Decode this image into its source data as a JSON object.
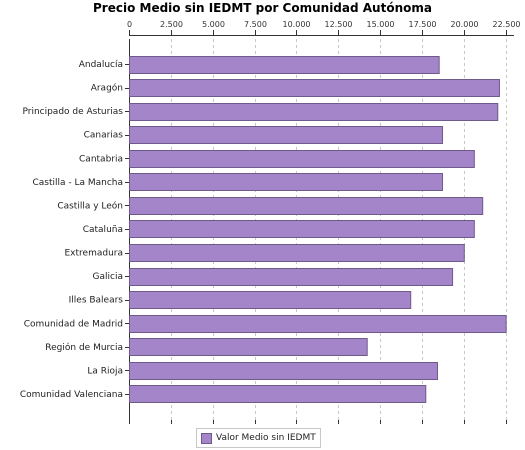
{
  "chart_data": {
    "type": "bar",
    "orientation": "horizontal",
    "title": "Precio Medio sin IEDMT por Comunidad Autónoma",
    "categories": [
      "Andalucía",
      "Aragón",
      "Principado de Asturias",
      "Canarias",
      "Cantabria",
      "Castilla - La Mancha",
      "Castilla y León",
      "Cataluña",
      "Extremadura",
      "Galicia",
      "Illes Balears",
      "Comunidad de Madrid",
      "Región de Murcia",
      "La Rioja",
      "Comunidad Valenciana"
    ],
    "series": [
      {
        "name": "Valor Medio sin IEDMT",
        "color": "#a585c9",
        "values": [
          18500,
          22100,
          22000,
          18700,
          20600,
          18700,
          21100,
          20600,
          20000,
          19300,
          16800,
          22500,
          14200,
          18400,
          17700
        ]
      }
    ],
    "xlim": [
      0,
      23000
    ],
    "xticks": [
      0,
      2500,
      5000,
      7500,
      10000,
      12500,
      15000,
      17500,
      20000,
      22500
    ],
    "xtick_labels": [
      "0",
      "2.500",
      "5.000",
      "7.500",
      "10.000",
      "12.500",
      "15.000",
      "17.500",
      "20.000",
      "22.500"
    ],
    "axis_position": "top",
    "grid": true,
    "legend_placement": "bottom-center"
  }
}
